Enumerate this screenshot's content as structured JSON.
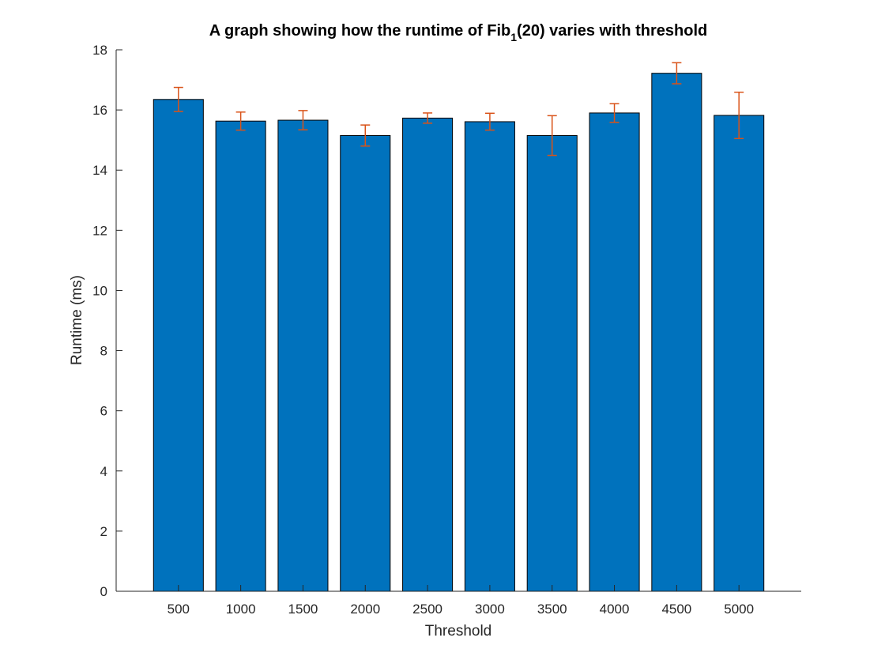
{
  "chart_data": {
    "type": "bar",
    "title_main": "A graph showing how the runtime of Fib",
    "title_sub": "1",
    "title_tail": "(20) varies with threshold",
    "xlabel": "Threshold",
    "ylabel": "Runtime (ms)",
    "categories": [
      "500",
      "1000",
      "1500",
      "2000",
      "2500",
      "3000",
      "3500",
      "4000",
      "4500",
      "5000"
    ],
    "values": [
      16.35,
      15.63,
      15.66,
      15.15,
      15.73,
      15.61,
      15.15,
      15.9,
      17.22,
      15.82
    ],
    "error": [
      0.4,
      0.3,
      0.32,
      0.35,
      0.17,
      0.28,
      0.66,
      0.31,
      0.35,
      0.77
    ],
    "ylim": [
      0,
      18
    ],
    "yticks": [
      0,
      2,
      4,
      6,
      8,
      10,
      12,
      14,
      16,
      18
    ],
    "bar_color": "#0072BD",
    "error_color": "#D95319",
    "grid": false,
    "legend": "none"
  }
}
